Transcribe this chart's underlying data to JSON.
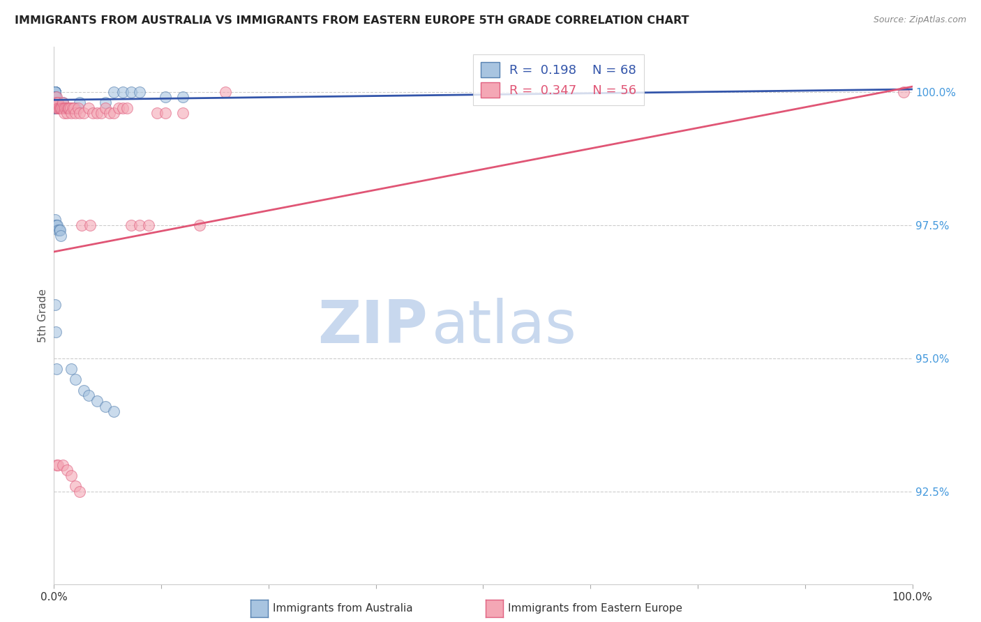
{
  "title": "IMMIGRANTS FROM AUSTRALIA VS IMMIGRANTS FROM EASTERN EUROPE 5TH GRADE CORRELATION CHART",
  "source": "Source: ZipAtlas.com",
  "ylabel": "5th Grade",
  "ytick_labels": [
    "100.0%",
    "97.5%",
    "95.0%",
    "92.5%"
  ],
  "ytick_values": [
    1.0,
    0.975,
    0.95,
    0.925
  ],
  "legend_blue_r": "R =  0.198",
  "legend_blue_n": "N = 68",
  "legend_pink_r": "R =  0.347",
  "legend_pink_n": "N = 56",
  "blue_color": "#A8C4E0",
  "pink_color": "#F4A7B5",
  "blue_edge_color": "#5580B0",
  "pink_edge_color": "#E06080",
  "blue_line_color": "#3355AA",
  "pink_line_color": "#E05575",
  "right_label_color": "#4499DD",
  "watermark_zip": "ZIP",
  "watermark_atlas": "atlas",
  "grid_color": "#CCCCCC",
  "background_color": "#FFFFFF",
  "blue_scatter_x": [
    0.001,
    0.001,
    0.001,
    0.001,
    0.001,
    0.001,
    0.001,
    0.001,
    0.001,
    0.001,
    0.001,
    0.001,
    0.001,
    0.001,
    0.001,
    0.001,
    0.001,
    0.001,
    0.001,
    0.001,
    0.002,
    0.002,
    0.002,
    0.002,
    0.002,
    0.003,
    0.003,
    0.003,
    0.004,
    0.004,
    0.005,
    0.005,
    0.006,
    0.007,
    0.008,
    0.009,
    0.01,
    0.012,
    0.013,
    0.015,
    0.02,
    0.025,
    0.03,
    0.06,
    0.07,
    0.08,
    0.09,
    0.1,
    0.13,
    0.15,
    0.001,
    0.002,
    0.003,
    0.004,
    0.005,
    0.006,
    0.007,
    0.008,
    0.001,
    0.002,
    0.003,
    0.02,
    0.025,
    0.035,
    0.04,
    0.05,
    0.06,
    0.07
  ],
  "blue_scatter_y": [
    1.0,
    1.0,
    1.0,
    1.0,
    1.0,
    1.0,
    1.0,
    1.0,
    1.0,
    1.0,
    0.999,
    0.999,
    0.999,
    0.998,
    0.998,
    0.998,
    0.998,
    0.998,
    0.997,
    0.997,
    0.999,
    0.998,
    0.998,
    0.997,
    0.997,
    0.998,
    0.997,
    0.997,
    0.998,
    0.997,
    0.997,
    0.997,
    0.997,
    0.997,
    0.997,
    0.997,
    0.998,
    0.997,
    0.997,
    0.997,
    0.997,
    0.997,
    0.998,
    0.998,
    1.0,
    1.0,
    1.0,
    1.0,
    0.999,
    0.999,
    0.976,
    0.975,
    0.975,
    0.975,
    0.974,
    0.974,
    0.974,
    0.973,
    0.96,
    0.955,
    0.948,
    0.948,
    0.946,
    0.944,
    0.943,
    0.942,
    0.941,
    0.94
  ],
  "pink_scatter_x": [
    0.002,
    0.003,
    0.003,
    0.004,
    0.005,
    0.005,
    0.006,
    0.007,
    0.008,
    0.009,
    0.01,
    0.01,
    0.012,
    0.012,
    0.013,
    0.014,
    0.015,
    0.016,
    0.017,
    0.018,
    0.019,
    0.02,
    0.022,
    0.023,
    0.025,
    0.028,
    0.03,
    0.032,
    0.035,
    0.04,
    0.042,
    0.045,
    0.05,
    0.055,
    0.06,
    0.065,
    0.07,
    0.075,
    0.08,
    0.085,
    0.09,
    0.1,
    0.11,
    0.12,
    0.13,
    0.15,
    0.17,
    0.2,
    0.99,
    0.003,
    0.005,
    0.01,
    0.015,
    0.02,
    0.025,
    0.03
  ],
  "pink_scatter_y": [
    0.998,
    0.999,
    0.997,
    0.998,
    0.998,
    0.997,
    0.997,
    0.997,
    0.997,
    0.997,
    0.998,
    0.997,
    0.997,
    0.996,
    0.997,
    0.997,
    0.996,
    0.997,
    0.997,
    0.997,
    0.997,
    0.996,
    0.997,
    0.997,
    0.996,
    0.997,
    0.996,
    0.975,
    0.996,
    0.997,
    0.975,
    0.996,
    0.996,
    0.996,
    0.997,
    0.996,
    0.996,
    0.997,
    0.997,
    0.997,
    0.975,
    0.975,
    0.975,
    0.996,
    0.996,
    0.996,
    0.975,
    1.0,
    1.0,
    0.93,
    0.93,
    0.93,
    0.929,
    0.928,
    0.926,
    0.925
  ],
  "blue_trend_x": [
    0.0,
    1.0
  ],
  "blue_trend_y": [
    0.9985,
    1.0005
  ],
  "pink_trend_x": [
    0.0,
    1.0
  ],
  "pink_trend_y": [
    0.97,
    1.001
  ],
  "xmin": 0.0,
  "xmax": 1.0,
  "ymin": 0.9075,
  "ymax": 1.0085,
  "xtick_positions": [
    0.0,
    0.125,
    0.25,
    0.375,
    0.5,
    0.625,
    0.75,
    0.875,
    1.0
  ]
}
